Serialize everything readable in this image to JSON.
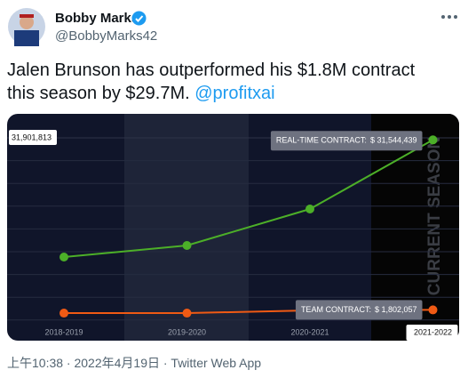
{
  "tweet": {
    "author": "Bobby Marks",
    "handle": "@BobbyMarks42",
    "text": "Jalen Brunson has outperformed his $1.8M contract this season by $29.7M.",
    "link": "@profitxai",
    "footer": "上午10:38 · 2022年4月19日 · Twitter Web App"
  },
  "chart_data": {
    "type": "line",
    "categories": [
      "2018-2019",
      "2019-2020",
      "2020-2021",
      "2021-2022"
    ],
    "annotation": "CURRENT SEASON",
    "ylim": [
      0,
      31901813
    ],
    "yticks": [
      {
        "value": 31901813,
        "label": "31,901,813"
      }
    ],
    "series": [
      {
        "name": "REAL-TIME CONTRACT:",
        "color": "#4caf28",
        "values": [
          11050000,
          13070000,
          19450000,
          31544439
        ],
        "value_labels": [
          null,
          null,
          null,
          "$ 31,544,439"
        ]
      },
      {
        "name": "TEAM CONTRACT:",
        "color": "#f05a14",
        "values": [
          1240000,
          1240000,
          1710000,
          1802057
        ],
        "value_labels": [
          null,
          null,
          null,
          "$ 1,802,057"
        ]
      }
    ]
  }
}
